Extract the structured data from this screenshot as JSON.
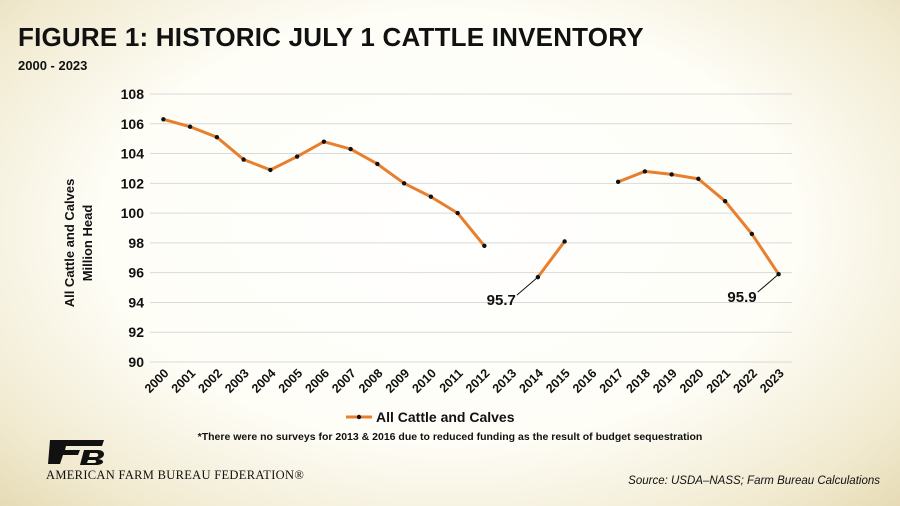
{
  "header": {
    "title": "FIGURE  1: HISTORIC JULY 1 CATTLE INVENTORY",
    "subtitle": "2000 - 2023"
  },
  "footnote": "*There were no surveys for 2013 & 2016 due to reduced funding as the result of budget sequestration",
  "source": "Source: USDA–NASS; Farm Bureau Calculations",
  "logo": {
    "text": "AMERICAN FARM BUREAU FEDERATION®",
    "icon": "farm-bureau-fb-logo"
  },
  "colors": {
    "line": "#E87F2E",
    "marker": "#111111",
    "grid": "#D9D9D9"
  },
  "chart_data": {
    "type": "line",
    "title": "FIGURE  1: HISTORIC JULY 1 CATTLE INVENTORY",
    "subtitle": "2000 - 2023",
    "ylabel": [
      "All Cattle and Calves",
      "Million Head"
    ],
    "xlabel": "",
    "ylim": [
      90,
      108
    ],
    "yticks": [
      90,
      92,
      94,
      96,
      98,
      100,
      102,
      104,
      106,
      108
    ],
    "categories": [
      "2000",
      "2001",
      "2002",
      "2003",
      "2004",
      "2005",
      "2006",
      "2007",
      "2008",
      "2009",
      "2010",
      "2011",
      "2012",
      "2013",
      "2014",
      "2015",
      "2016",
      "2017",
      "2018",
      "2019",
      "2020",
      "2021",
      "2022",
      "2023"
    ],
    "series": [
      {
        "name": "All Cattle and Calves",
        "values": [
          106.3,
          105.8,
          105.1,
          103.6,
          102.9,
          103.8,
          104.8,
          104.3,
          103.3,
          102.0,
          101.1,
          100.0,
          97.8,
          null,
          95.7,
          98.1,
          null,
          102.1,
          102.8,
          102.6,
          102.3,
          100.8,
          98.6,
          95.9
        ]
      }
    ],
    "annotations": [
      {
        "category": "2014",
        "label": "95.7"
      },
      {
        "category": "2023",
        "label": "95.9"
      }
    ],
    "grid": true,
    "legend": "bottom"
  }
}
